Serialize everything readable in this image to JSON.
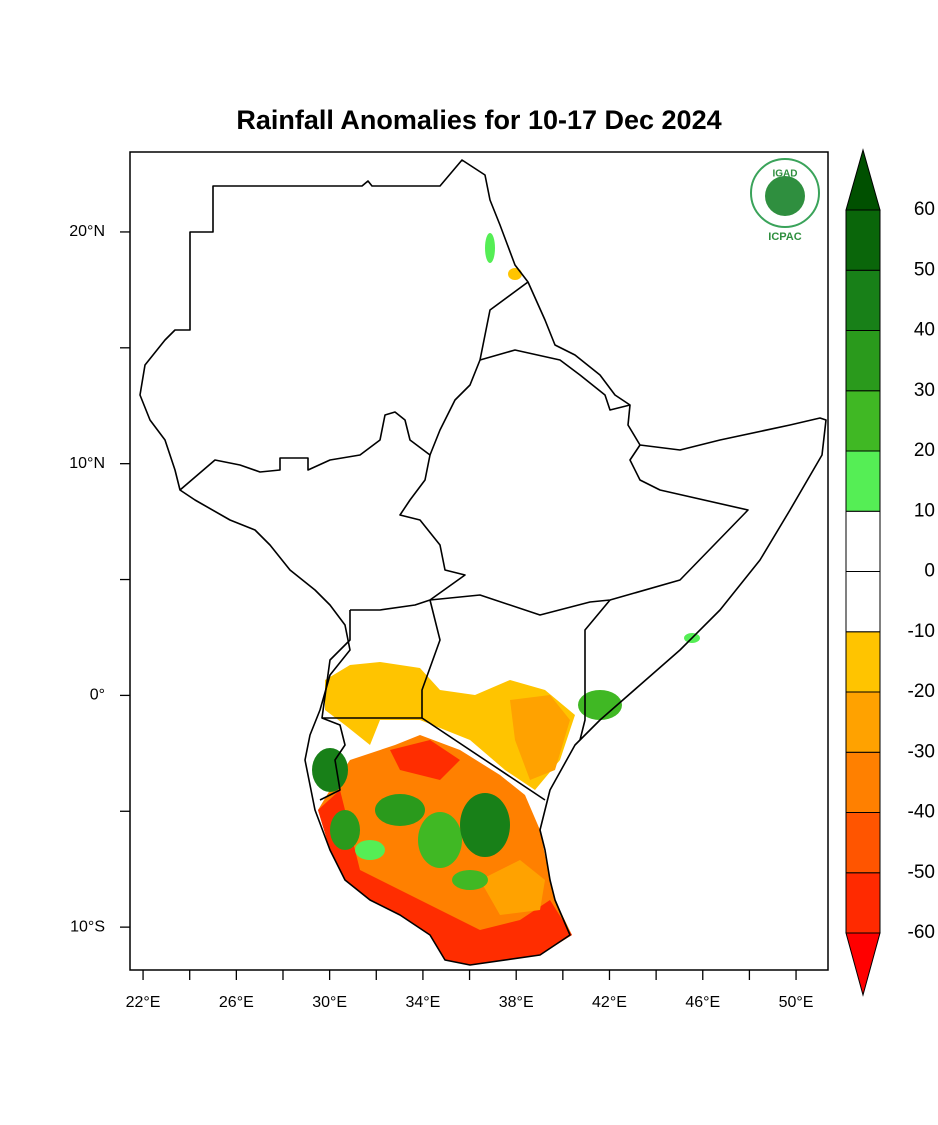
{
  "map": {
    "type": "map",
    "title": "Rainfall Anomalies for 10-17 Dec 2024",
    "xlim": [
      21.44,
      51.37
    ],
    "ylim": [
      -11.85,
      23.45
    ],
    "xticks": [
      {
        "value": 22,
        "label": "22°E"
      },
      {
        "value": 26,
        "label": "26°E"
      },
      {
        "value": 30,
        "label": "30°E"
      },
      {
        "value": 34,
        "label": "34°E"
      },
      {
        "value": 38,
        "label": "38°E"
      },
      {
        "value": 42,
        "label": "42°E"
      },
      {
        "value": 46,
        "label": "46°E"
      },
      {
        "value": 50,
        "label": "50°E"
      }
    ],
    "xticks_minor": [
      24,
      28,
      32,
      36,
      40,
      44,
      48
    ],
    "yticks": [
      {
        "value": 20,
        "label": "20°N"
      },
      {
        "value": 10,
        "label": "10°N"
      },
      {
        "value": 0,
        "label": "0°"
      },
      {
        "value": -10,
        "label": "10°S"
      }
    ],
    "yticks_minor": [
      15,
      5,
      -5
    ],
    "logo": {
      "name": "IGAD",
      "org": "ICPAC"
    },
    "colorbar": {
      "levels": [
        -60,
        -50,
        -40,
        -30,
        -20,
        -10,
        0,
        10,
        20,
        30,
        40,
        50,
        60
      ],
      "colors": [
        "#ff2a00",
        "#ff5500",
        "#ff8000",
        "#ffa200",
        "#ffc400",
        "#ffffff",
        "#ffffff",
        "#55ee55",
        "#40b824",
        "#2a9a1c",
        "#188018",
        "#0a660a"
      ],
      "under_color": "#ff0000",
      "over_color": "#005000"
    }
  }
}
